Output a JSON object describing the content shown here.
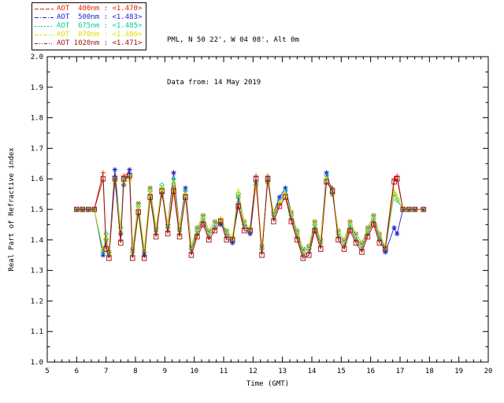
{
  "header": {
    "location": "PML, N 50 22', W 04 08', Alt 0m",
    "data_from": "Data from: 14 May 2019"
  },
  "chart_data": {
    "type": "line",
    "title": "",
    "xlabel": "Time (GMT)",
    "ylabel": "Real Part of Refractive index",
    "xlim": [
      5,
      20
    ],
    "ylim": [
      1.0,
      2.0
    ],
    "grid": false,
    "legend_position": "top-left",
    "xticks": [
      5,
      6,
      7,
      8,
      9,
      10,
      11,
      12,
      13,
      14,
      15,
      16,
      17,
      18,
      19,
      20
    ],
    "yticks": [
      "1.0",
      "1.1",
      "1.2",
      "1.3",
      "1.4",
      "1.5",
      "1.6",
      "1.7",
      "1.8",
      "1.9",
      "2.0"
    ],
    "x": [
      6.0,
      6.2,
      6.4,
      6.6,
      6.9,
      7.0,
      7.1,
      7.3,
      7.5,
      7.6,
      7.8,
      7.9,
      8.1,
      8.3,
      8.5,
      8.7,
      8.9,
      9.1,
      9.3,
      9.5,
      9.7,
      9.9,
      10.1,
      10.3,
      10.5,
      10.7,
      10.9,
      11.1,
      11.3,
      11.5,
      11.7,
      11.9,
      12.1,
      12.3,
      12.5,
      12.7,
      12.9,
      13.1,
      13.3,
      13.5,
      13.7,
      13.9,
      14.1,
      14.3,
      14.5,
      14.7,
      14.9,
      15.1,
      15.3,
      15.5,
      15.7,
      15.9,
      16.1,
      16.3,
      16.5,
      16.8,
      16.9,
      17.1,
      17.3,
      17.5,
      17.8
    ],
    "series": [
      {
        "name": "AOT 400nm",
        "label": "AOT  400nm : <1.470>",
        "mean_value": "<1.470>",
        "color": "#dd2200",
        "marker": "plus",
        "dash": "5 2",
        "values": [
          1.5,
          1.5,
          1.5,
          1.5,
          1.62,
          1.38,
          1.35,
          1.61,
          1.4,
          1.61,
          1.62,
          1.35,
          1.5,
          1.35,
          1.55,
          1.42,
          1.57,
          1.43,
          1.57,
          1.42,
          1.55,
          1.36,
          1.42,
          1.46,
          1.41,
          1.44,
          1.47,
          1.41,
          1.41,
          1.52,
          1.44,
          1.44,
          1.61,
          1.36,
          1.61,
          1.47,
          1.52,
          1.55,
          1.47,
          1.41,
          1.35,
          1.36,
          1.44,
          1.38,
          1.6,
          1.57,
          1.41,
          1.38,
          1.44,
          1.4,
          1.37,
          1.42,
          1.46,
          1.4,
          1.38,
          1.6,
          1.61,
          1.5,
          1.5,
          1.5,
          1.5
        ]
      },
      {
        "name": "AOT 500nm",
        "label": "AOT  500nm : <1.483>",
        "mean_value": "<1.483>",
        "color": "#2222cc",
        "marker": "asterisk",
        "dash": "5 2 1 2",
        "values": [
          1.5,
          1.5,
          1.5,
          1.5,
          1.35,
          1.4,
          1.36,
          1.63,
          1.42,
          1.58,
          1.63,
          1.37,
          1.52,
          1.35,
          1.57,
          1.44,
          1.55,
          1.45,
          1.62,
          1.44,
          1.57,
          1.38,
          1.44,
          1.48,
          1.43,
          1.46,
          1.45,
          1.43,
          1.39,
          1.54,
          1.46,
          1.42,
          1.58,
          1.38,
          1.59,
          1.49,
          1.54,
          1.57,
          1.49,
          1.43,
          1.37,
          1.38,
          1.46,
          1.4,
          1.62,
          1.55,
          1.43,
          1.4,
          1.46,
          1.42,
          1.39,
          1.44,
          1.48,
          1.42,
          1.36,
          1.44,
          1.42,
          1.5,
          1.5,
          1.5,
          1.5
        ]
      },
      {
        "name": "AOT 675nm",
        "label": "AOT  675nm : <1.485>",
        "mean_value": "<1.485>",
        "color": "#00cc99",
        "marker": "diamond",
        "dash": "2 2",
        "values": [
          1.5,
          1.5,
          1.5,
          1.5,
          1.36,
          1.42,
          1.35,
          1.6,
          1.44,
          1.6,
          1.61,
          1.36,
          1.51,
          1.36,
          1.56,
          1.43,
          1.58,
          1.44,
          1.6,
          1.43,
          1.56,
          1.37,
          1.43,
          1.47,
          1.42,
          1.45,
          1.46,
          1.42,
          1.4,
          1.55,
          1.45,
          1.43,
          1.59,
          1.37,
          1.6,
          1.48,
          1.53,
          1.56,
          1.48,
          1.42,
          1.36,
          1.37,
          1.45,
          1.39,
          1.61,
          1.56,
          1.42,
          1.39,
          1.45,
          1.41,
          1.38,
          1.43,
          1.47,
          1.41,
          1.37,
          1.55,
          1.53,
          1.5,
          1.5,
          1.5,
          1.5
        ]
      },
      {
        "name": "AOT 870nm",
        "label": "AOT  870nm : <1.486>",
        "mean_value": "<1.486>",
        "color": "#dddd00",
        "marker": "triangle",
        "dash": "5 2 2 2",
        "values": [
          1.5,
          1.5,
          1.5,
          1.5,
          1.37,
          1.41,
          1.36,
          1.59,
          1.43,
          1.59,
          1.6,
          1.37,
          1.52,
          1.37,
          1.57,
          1.44,
          1.57,
          1.45,
          1.59,
          1.44,
          1.55,
          1.38,
          1.44,
          1.48,
          1.43,
          1.46,
          1.47,
          1.43,
          1.41,
          1.56,
          1.46,
          1.44,
          1.58,
          1.38,
          1.59,
          1.49,
          1.52,
          1.55,
          1.49,
          1.43,
          1.37,
          1.38,
          1.46,
          1.4,
          1.6,
          1.55,
          1.43,
          1.4,
          1.46,
          1.42,
          1.39,
          1.44,
          1.48,
          1.42,
          1.38,
          1.56,
          1.54,
          1.5,
          1.5,
          1.5,
          1.5
        ]
      },
      {
        "name": "AOT 1020nm",
        "label": "AOT 1020nm : <1.471>",
        "mean_value": "<1.471>",
        "color": "#991111",
        "marker": "square",
        "dash": "4 2 1 2 1 2",
        "values": [
          1.5,
          1.5,
          1.5,
          1.5,
          1.6,
          1.37,
          1.34,
          1.6,
          1.39,
          1.6,
          1.61,
          1.34,
          1.49,
          1.34,
          1.54,
          1.41,
          1.56,
          1.42,
          1.56,
          1.41,
          1.54,
          1.35,
          1.41,
          1.45,
          1.4,
          1.43,
          1.46,
          1.4,
          1.4,
          1.51,
          1.43,
          1.43,
          1.6,
          1.35,
          1.6,
          1.46,
          1.51,
          1.54,
          1.46,
          1.4,
          1.34,
          1.35,
          1.43,
          1.37,
          1.59,
          1.56,
          1.4,
          1.37,
          1.43,
          1.39,
          1.36,
          1.41,
          1.45,
          1.39,
          1.37,
          1.59,
          1.6,
          1.5,
          1.5,
          1.5,
          1.5
        ]
      }
    ]
  }
}
